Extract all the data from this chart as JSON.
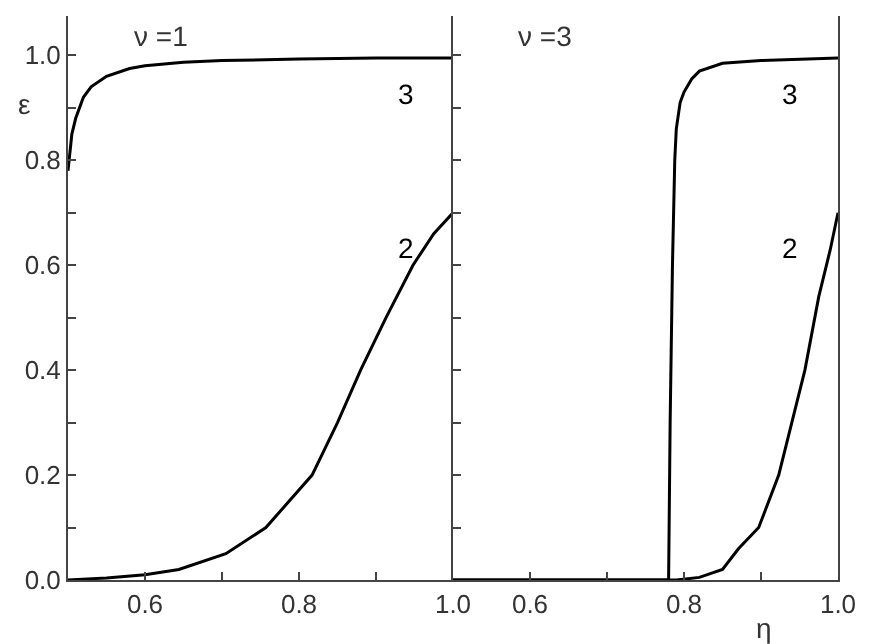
{
  "chart_data": [
    {
      "type": "line",
      "ylabel": "ε",
      "xlim": [
        0.5,
        1.0
      ],
      "xticks": [
        {
          "value": 0.6,
          "label": "0.6"
        },
        {
          "value": 0.7,
          "label": null
        },
        {
          "value": 0.8,
          "label": "0.8"
        },
        {
          "value": 0.9,
          "label": null
        },
        {
          "value": 1.0,
          "label": "1.0"
        }
      ],
      "ylim": [
        0,
        1.075
      ],
      "yticks": [
        {
          "value": 0,
          "label": "0.0"
        },
        {
          "value": 0.1,
          "label": null
        },
        0.2,
        {
          "value": 0.3,
          "label": null
        },
        0.4,
        {
          "value": 0.5,
          "label": null
        },
        0.6,
        {
          "value": 0.7,
          "label": null
        },
        0.8,
        {
          "value": 0.9,
          "label": null
        },
        {
          "value": 1.0,
          "label": "1.0"
        }
      ],
      "annotations": [
        "ν =1"
      ],
      "series": [
        {
          "name": "3",
          "color": "#000000",
          "x": [
            0.5,
            0.505,
            0.51,
            0.52,
            0.53,
            0.55,
            0.58,
            0.6,
            0.65,
            0.7,
            0.8,
            0.9,
            1.0
          ],
          "values": [
            0.78,
            0.85,
            0.88,
            0.92,
            0.94,
            0.96,
            0.975,
            0.98,
            0.987,
            0.99,
            0.993,
            0.995,
            0.995
          ]
        },
        {
          "name": "2",
          "color": "#000000",
          "x": [
            0.5,
            0.55,
            0.6,
            0.644,
            0.705,
            0.757,
            0.817,
            0.85,
            0.88,
            0.913,
            0.948,
            0.975,
            1.0
          ],
          "values": [
            0.0,
            0.004,
            0.01,
            0.02,
            0.05,
            0.1,
            0.2,
            0.3,
            0.4,
            0.5,
            0.6,
            0.66,
            0.7
          ]
        }
      ]
    },
    {
      "type": "line",
      "xlabel": "η",
      "tick_labels": "x",
      "xlim": [
        0.5,
        1.0
      ],
      "xticks": [
        0.6,
        {
          "value": 0.7,
          "label": null
        },
        0.8,
        {
          "value": 0.9,
          "label": null
        },
        {
          "value": 1.0,
          "label": "1.0"
        }
      ],
      "ylim": [
        0,
        1.075
      ],
      "yticks": [
        {
          "value": 0,
          "label": null
        },
        {
          "value": 0.1,
          "label": null
        },
        {
          "value": 0.2,
          "label": null
        },
        {
          "value": 0.3,
          "label": null
        },
        {
          "value": 0.4,
          "label": null
        },
        {
          "value": 0.5,
          "label": null
        },
        {
          "value": 0.6,
          "label": null
        },
        {
          "value": 0.7,
          "label": null
        },
        {
          "value": 0.8,
          "label": null
        },
        {
          "value": 0.9,
          "label": null
        },
        {
          "value": 1.0,
          "label": null
        }
      ],
      "annotations": [
        "ν =3"
      ],
      "series": [
        {
          "name": "3",
          "color": "#000000",
          "x": [
            0.5,
            0.78,
            0.782,
            0.785,
            0.788,
            0.79,
            0.795,
            0.8,
            0.81,
            0.82,
            0.85,
            0.9,
            1.0
          ],
          "values": [
            0.0,
            0.0,
            0.3,
            0.6,
            0.8,
            0.86,
            0.91,
            0.93,
            0.955,
            0.97,
            0.985,
            0.99,
            0.995
          ]
        },
        {
          "name": "2",
          "color": "#000000",
          "x": [
            0.5,
            0.79,
            0.82,
            0.85,
            0.871,
            0.897,
            0.923,
            0.94,
            0.957,
            0.975,
            0.99,
            1.0
          ],
          "values": [
            0.0,
            0.0,
            0.005,
            0.02,
            0.06,
            0.1,
            0.2,
            0.3,
            0.4,
            0.54,
            0.63,
            0.7
          ]
        }
      ]
    }
  ]
}
